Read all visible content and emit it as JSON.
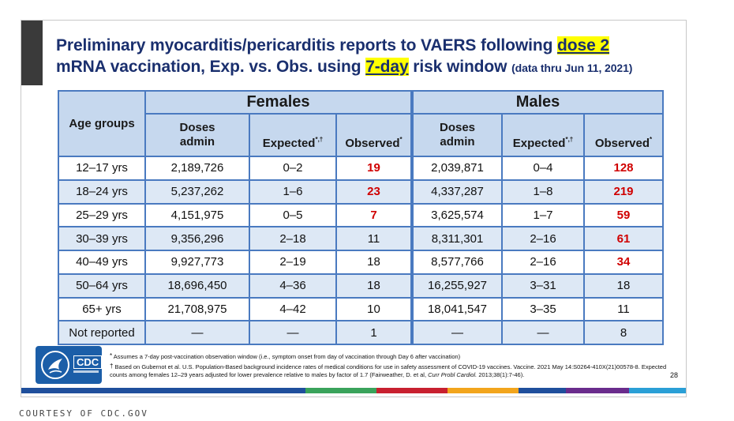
{
  "title": {
    "part1": "Preliminary myocarditis/pericarditis reports to VAERS following ",
    "hl1": "dose 2",
    "part2": "mRNA vaccination, Exp. vs. Obs. using ",
    "hl2": "7-day",
    "part3": " risk window",
    "sub": "(data thru Jun 11, 2021)"
  },
  "table": {
    "group_female": "Females",
    "group_male": "Males",
    "age_header": "Age groups",
    "doses_header_l1": "Doses",
    "doses_header_l2": "admin",
    "expected_header": "Expected",
    "expected_marks": "*,†",
    "observed_header": "Observed",
    "observed_mark": "*",
    "rows": [
      {
        "age": "12–17 yrs",
        "f_doses": "2,189,726",
        "f_exp": "0–2",
        "f_obs": "19",
        "f_red": true,
        "m_doses": "2,039,871",
        "m_exp": "0–4",
        "m_obs": "128",
        "m_red": true
      },
      {
        "age": "18–24 yrs",
        "f_doses": "5,237,262",
        "f_exp": "1–6",
        "f_obs": "23",
        "f_red": true,
        "m_doses": "4,337,287",
        "m_exp": "1–8",
        "m_obs": "219",
        "m_red": true
      },
      {
        "age": "25–29 yrs",
        "f_doses": "4,151,975",
        "f_exp": "0–5",
        "f_obs": "7",
        "f_red": true,
        "m_doses": "3,625,574",
        "m_exp": "1–7",
        "m_obs": "59",
        "m_red": true
      },
      {
        "age": "30–39 yrs",
        "f_doses": "9,356,296",
        "f_exp": "2–18",
        "f_obs": "11",
        "f_red": false,
        "m_doses": "8,311,301",
        "m_exp": "2–16",
        "m_obs": "61",
        "m_red": true
      },
      {
        "age": "40–49 yrs",
        "f_doses": "9,927,773",
        "f_exp": "2–19",
        "f_obs": "18",
        "f_red": false,
        "m_doses": "8,577,766",
        "m_exp": "2–16",
        "m_obs": "34",
        "m_red": true
      },
      {
        "age": "50–64 yrs",
        "f_doses": "18,696,450",
        "f_exp": "4–36",
        "f_obs": "18",
        "f_red": false,
        "m_doses": "16,255,927",
        "m_exp": "3–31",
        "m_obs": "18",
        "m_red": false
      },
      {
        "age": "65+ yrs",
        "f_doses": "21,708,975",
        "f_exp": "4–42",
        "f_obs": "10",
        "f_red": false,
        "m_doses": "18,041,547",
        "m_exp": "3–35",
        "m_obs": "11",
        "m_red": false
      },
      {
        "age": "Not reported",
        "f_doses": "—",
        "f_exp": "—",
        "f_obs": "1",
        "f_red": false,
        "m_doses": "—",
        "m_exp": "—",
        "m_obs": "8",
        "m_red": false
      }
    ]
  },
  "logo": {
    "text": "CDC",
    "icon": "hhs-eagle-icon"
  },
  "footnotes": {
    "f1_mark": "*",
    "f1": " Assumes a 7-day post-vaccination observation window (i.e., symptom onset from day of vaccination through Day 6 after vaccination)",
    "f2_mark": "†",
    "f2a": " Based on Gubernot et al. U.S. Population-Based background incidence rates of medical conditions for use in safety assessment of COVID-19 vaccines. Vaccine. 2021 May 14:S0264-410X(21)00578-8. Expected counts among females 12–29 years adjusted for lower prevalence relative to males by factor of 1.7 (Fairweather, D. et al, ",
    "f2_italic": "Curr Probl Cardiol.",
    "f2b": " 2013;38(1):7-46)."
  },
  "page_number": "28",
  "stripe_colors": [
    "#1f4f9c",
    "#1f4f9c",
    "#1f4f9c",
    "#1f4f9c",
    "#3aa35b",
    "#c8202f",
    "#f2a51c",
    "#1f4f9c",
    "#6a2c8c",
    "#2a9fd6"
  ],
  "caption": "COURTESY OF CDC.GOV",
  "colors": {
    "header_fill": "#c6d8ee",
    "alt_row_fill": "#dde8f5",
    "border": "#4a7ac0",
    "highlight": "#ff0000",
    "title": "#1a2f6e"
  }
}
